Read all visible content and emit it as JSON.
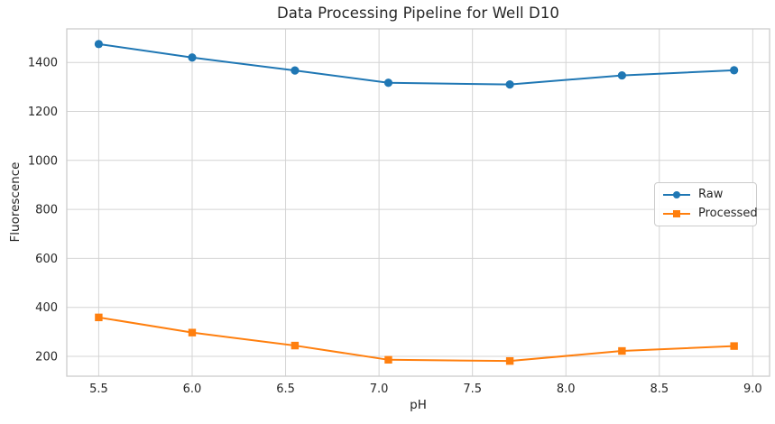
{
  "figure": {
    "title": "Data Processing Pipeline for Well D10",
    "xlabel": "pH",
    "ylabel": "Fluorescence"
  },
  "colors": {
    "raw": "#1f77b4",
    "processed": "#ff7f0e",
    "grid": "#d4d4d4",
    "spine": "#cccccc",
    "text": "#262626",
    "background": "#ffffff"
  },
  "legend": {
    "position": "center right",
    "items": [
      {
        "label": "Raw",
        "color": "#1f77b4",
        "marker": "circle"
      },
      {
        "label": "Processed",
        "color": "#ff7f0e",
        "marker": "square"
      }
    ]
  },
  "chart_data": {
    "type": "line",
    "title": "Data Processing Pipeline for Well D10",
    "xlabel": "pH",
    "ylabel": "Fluorescence",
    "x": [
      5.5,
      6.0,
      6.55,
      7.05,
      7.7,
      8.3,
      8.9
    ],
    "series": [
      {
        "name": "Raw",
        "color": "#1f77b4",
        "marker": "circle",
        "values": [
          1475,
          1420,
          1367,
          1317,
          1310,
          1347,
          1368
        ]
      },
      {
        "name": "Processed",
        "color": "#ff7f0e",
        "marker": "square",
        "values": [
          359,
          297,
          244,
          186,
          181,
          222,
          242
        ]
      }
    ],
    "xticks": [
      5.5,
      6.0,
      6.5,
      7.0,
      7.5,
      8.0,
      8.5,
      9.0
    ],
    "yticks": [
      200,
      400,
      600,
      800,
      1000,
      1200,
      1400
    ],
    "xlim": [
      5.329,
      9.09
    ],
    "ylim": [
      119,
      1537
    ],
    "grid": true,
    "legend_position": "center right"
  }
}
